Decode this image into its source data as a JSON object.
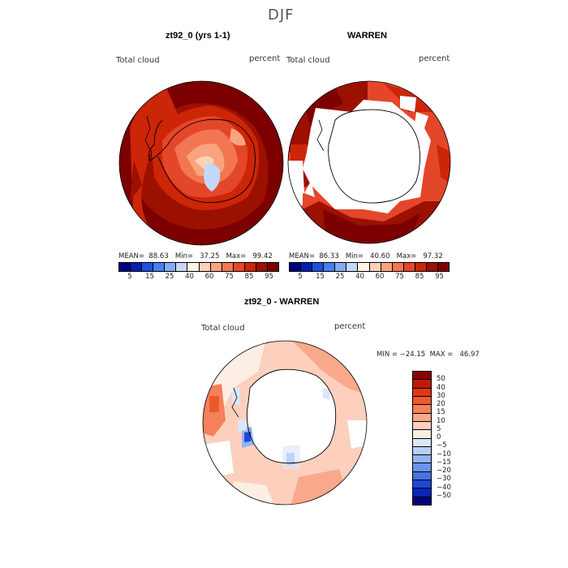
{
  "figure": {
    "title": "DJF"
  },
  "panel_left": {
    "title": "zt92_0 (yrs 1-1)",
    "variable": "Total cloud",
    "units": "percent",
    "stats": "MEAN=  88.63   Min=   37.25   Max=   99.42"
  },
  "panel_right": {
    "title": "WARREN",
    "variable": "Total cloud",
    "units": "percent",
    "stats": "MEAN=  86.33   Min=   40.60   Max=   97.32"
  },
  "panel_diff": {
    "title": "zt92_0 - WARREN",
    "variable": "Total cloud",
    "units": "percent",
    "minmax": "MIN = −24.15  MAX =   46.97"
  },
  "colors": {
    "abs_scale": [
      "#00007f",
      "#0020b0",
      "#1e50e0",
      "#4a7ff0",
      "#86aaf5",
      "#c6d8f8",
      "#fff4e6",
      "#fcd2b6",
      "#f9a480",
      "#f27652",
      "#e4462a",
      "#cc2508",
      "#9c1000",
      "#7c0000"
    ],
    "diff_scale": [
      "#8b0000",
      "#c0190a",
      "#dc3a14",
      "#ec5a2c",
      "#f5805a",
      "#f9a98a",
      "#fcd0bc",
      "#fdeee5",
      "#dbe6fb",
      "#b8cef8",
      "#93b3f4",
      "#6c93ee",
      "#4672e6",
      "#2048d8",
      "#0a24b8",
      "#000080"
    ],
    "continent_fill": "#ffffff",
    "coastline": "#000000"
  },
  "abs_colorbar_ticks": [
    "5",
    "15",
    "25",
    "40",
    "60",
    "75",
    "85",
    "95"
  ],
  "diff_colorbar_ticks": [
    "50",
    "40",
    "30",
    "20",
    "15",
    "10",
    "5",
    "0",
    "−5",
    "−10",
    "−15",
    "−20",
    "−30",
    "−40",
    "−50"
  ],
  "chart_data": [
    {
      "type": "heatmap",
      "title": "zt92_0 (yrs 1-1)",
      "variable": "Total cloud",
      "units": "percent",
      "mean": 88.63,
      "min": 37.25,
      "max": 99.42,
      "levels": [
        5,
        15,
        25,
        40,
        60,
        75,
        85,
        95
      ]
    },
    {
      "type": "heatmap",
      "title": "WARREN",
      "variable": "Total cloud",
      "units": "percent",
      "mean": 86.33,
      "min": 40.6,
      "max": 97.32,
      "levels": [
        5,
        15,
        25,
        40,
        60,
        75,
        85,
        95
      ]
    },
    {
      "type": "heatmap",
      "title": "zt92_0 - WARREN",
      "variable": "Total cloud",
      "units": "percent",
      "min": -24.15,
      "max": 46.97,
      "levels": [
        50,
        40,
        30,
        20,
        15,
        10,
        5,
        0,
        -5,
        -10,
        -15,
        -20,
        -30,
        -40,
        -50
      ]
    }
  ]
}
